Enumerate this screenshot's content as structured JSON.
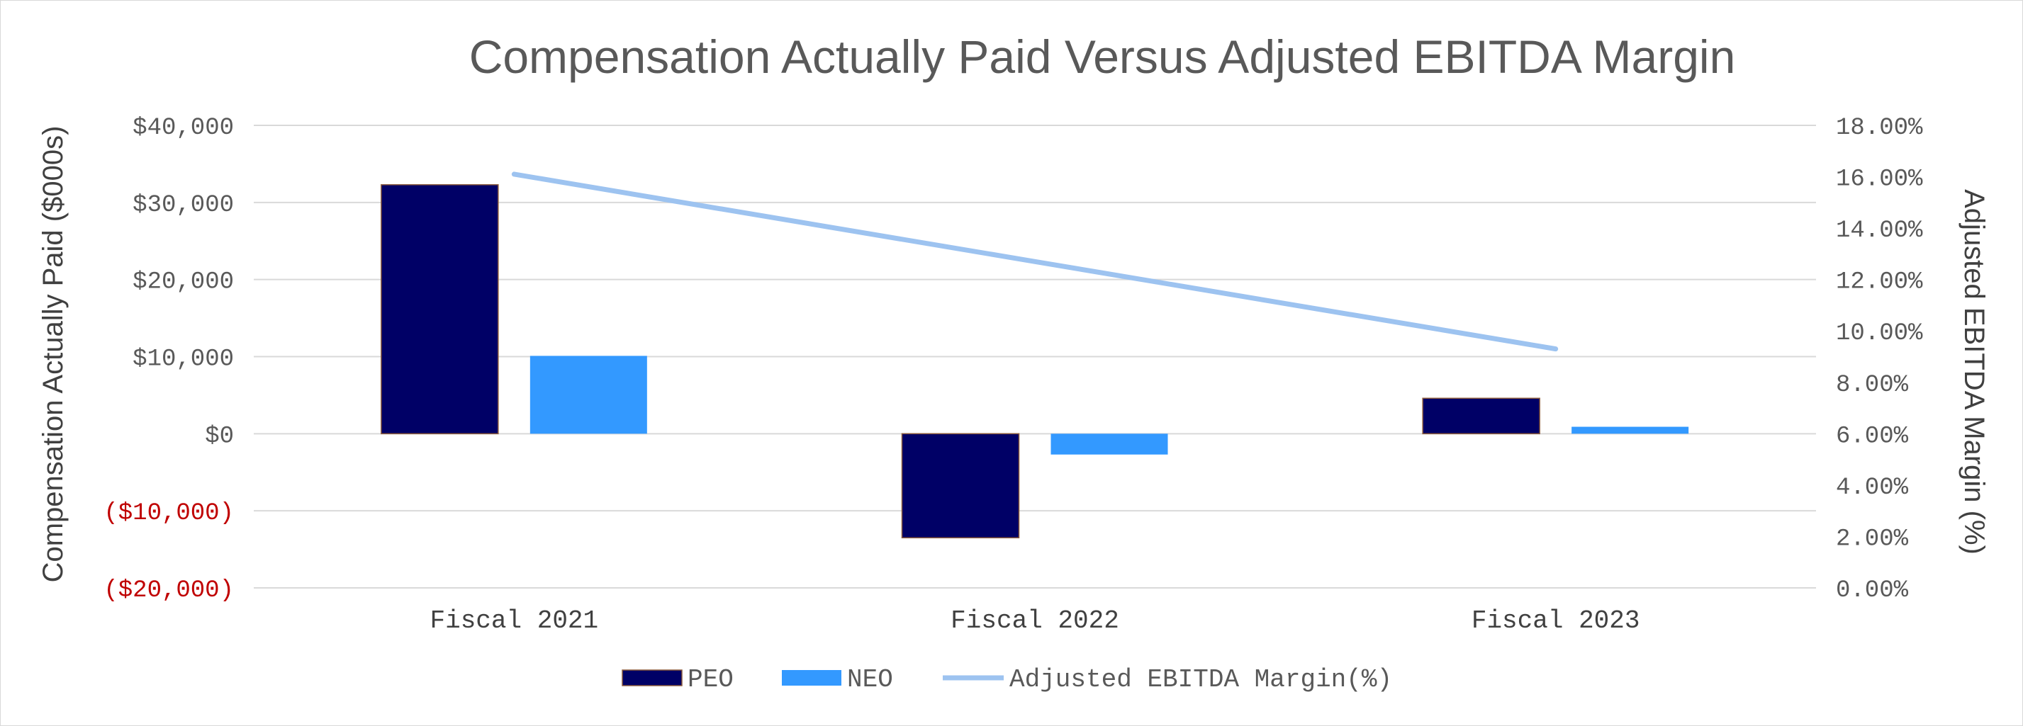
{
  "chart_data": {
    "type": "bar",
    "title": "Compensation Actually Paid Versus Adjusted EBITDA Margin",
    "ylabel": "Compensation Actually Paid ($000s)",
    "y2label": "Adjusted EBITDA Margin (%)",
    "categories": [
      "Fiscal 2021",
      "Fiscal 2022",
      "Fiscal 2023"
    ],
    "ylim": [
      -20000,
      40000
    ],
    "y2lim": [
      0,
      18
    ],
    "yticks": [
      {
        "value": 40000,
        "label": "$40,000"
      },
      {
        "value": 30000,
        "label": "$30,000"
      },
      {
        "value": 20000,
        "label": "$20,000"
      },
      {
        "value": 10000,
        "label": "$10,000"
      },
      {
        "value": 0,
        "label": "$0"
      },
      {
        "value": -10000,
        "label": "($10,000)"
      },
      {
        "value": -20000,
        "label": "($20,000)"
      }
    ],
    "y2ticks": [
      {
        "value": 18,
        "label": "18.00%"
      },
      {
        "value": 16,
        "label": "16.00%"
      },
      {
        "value": 14,
        "label": "14.00%"
      },
      {
        "value": 12,
        "label": "12.00%"
      },
      {
        "value": 10,
        "label": "10.00%"
      },
      {
        "value": 8,
        "label": "8.00%"
      },
      {
        "value": 6,
        "label": "6.00%"
      },
      {
        "value": 4,
        "label": "4.00%"
      },
      {
        "value": 2,
        "label": "2.00%"
      },
      {
        "value": 0,
        "label": "0.00%"
      }
    ],
    "series": [
      {
        "name": "PEO",
        "kind": "bar",
        "axis": "left",
        "color": "#000066",
        "values": [
          32300,
          -13500,
          4600
        ]
      },
      {
        "name": "NEO",
        "kind": "bar",
        "axis": "left",
        "color": "#3399ff",
        "values": [
          10100,
          -2700,
          900
        ]
      },
      {
        "name": "Adjusted EBITDA Margin(%)",
        "kind": "line",
        "axis": "right",
        "color": "#9dc3f0",
        "values": [
          16.1,
          12.7,
          9.3
        ]
      }
    ],
    "grid": true,
    "legend": "bottom"
  }
}
